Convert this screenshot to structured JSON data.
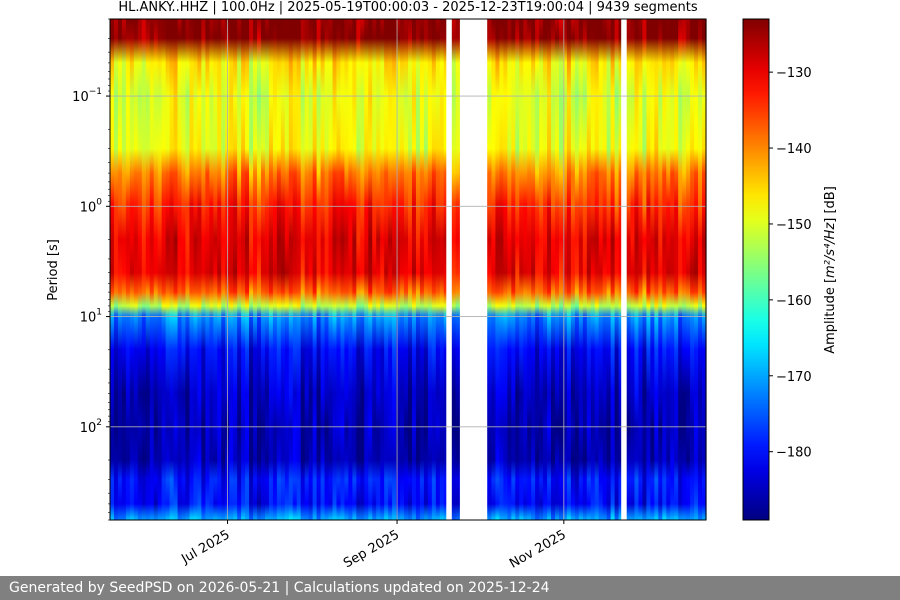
{
  "title": "HL.ANKY..HHZ | 100.0Hz | 2025-05-19T00:00:03 - 2025-12-23T19:00:04 | 9439 segments",
  "footer": "Generated by SeedPSD on 2026-05-21 | Calculations updated on 2025-12-24",
  "chart_data": {
    "type": "heatmap",
    "title": "HL.ANKY..HHZ | 100.0Hz | 2025-05-19T00:00:03 - 2025-12-23T19:00:04 | 9439 segments",
    "xlabel": "",
    "ylabel": "Period [s]",
    "x_range": [
      "2025-05-19",
      "2025-12-23"
    ],
    "x_ticks": [
      {
        "date": "2025-07-01",
        "label": "Jul 2025"
      },
      {
        "date": "2025-09-01",
        "label": "Sep 2025"
      },
      {
        "date": "2025-11-01",
        "label": "Nov 2025"
      }
    ],
    "y_scale": "log",
    "y_inverted": true,
    "y_range": [
      0.02,
      700
    ],
    "y_ticks": [
      {
        "value": 0.1,
        "base": "10",
        "exp": "−1"
      },
      {
        "value": 1,
        "base": "10",
        "exp": "0"
      },
      {
        "value": 10,
        "base": "10",
        "exp": "1"
      },
      {
        "value": 100,
        "base": "10",
        "exp": "2"
      }
    ],
    "grid": true,
    "colormap": "jet",
    "colorbar": {
      "label_prefix": "Amplitude [",
      "label_unit": "m²/s⁴/Hz",
      "label_suffix": "] [dB]",
      "vmin": -189,
      "vmax": -123,
      "ticks": [
        -130,
        -140,
        -150,
        -160,
        -170,
        -180
      ],
      "tick_labels": [
        "−130",
        "−140",
        "−150",
        "−160",
        "−170",
        "−180"
      ]
    },
    "data_gaps": [
      {
        "start": "2025-09-19",
        "end": "2025-09-21"
      },
      {
        "start": "2025-09-24",
        "end": "2025-10-04"
      },
      {
        "start": "2025-11-22",
        "end": "2025-11-24"
      }
    ],
    "amplitude_profile": [
      {
        "period": 0.02,
        "db": -124
      },
      {
        "period": 0.03,
        "db": -124
      },
      {
        "period": 0.05,
        "db": -147
      },
      {
        "period": 0.1,
        "db": -150
      },
      {
        "period": 0.3,
        "db": -149
      },
      {
        "period": 0.5,
        "db": -140
      },
      {
        "period": 1,
        "db": -134
      },
      {
        "period": 2,
        "db": -130
      },
      {
        "period": 4,
        "db": -130
      },
      {
        "period": 6,
        "db": -138
      },
      {
        "period": 8,
        "db": -152
      },
      {
        "period": 10,
        "db": -172
      },
      {
        "period": 20,
        "db": -181
      },
      {
        "period": 50,
        "db": -185
      },
      {
        "period": 100,
        "db": -186
      },
      {
        "period": 200,
        "db": -186
      },
      {
        "period": 300,
        "db": -180
      },
      {
        "period": 500,
        "db": -181
      },
      {
        "period": 700,
        "db": -170
      }
    ]
  }
}
